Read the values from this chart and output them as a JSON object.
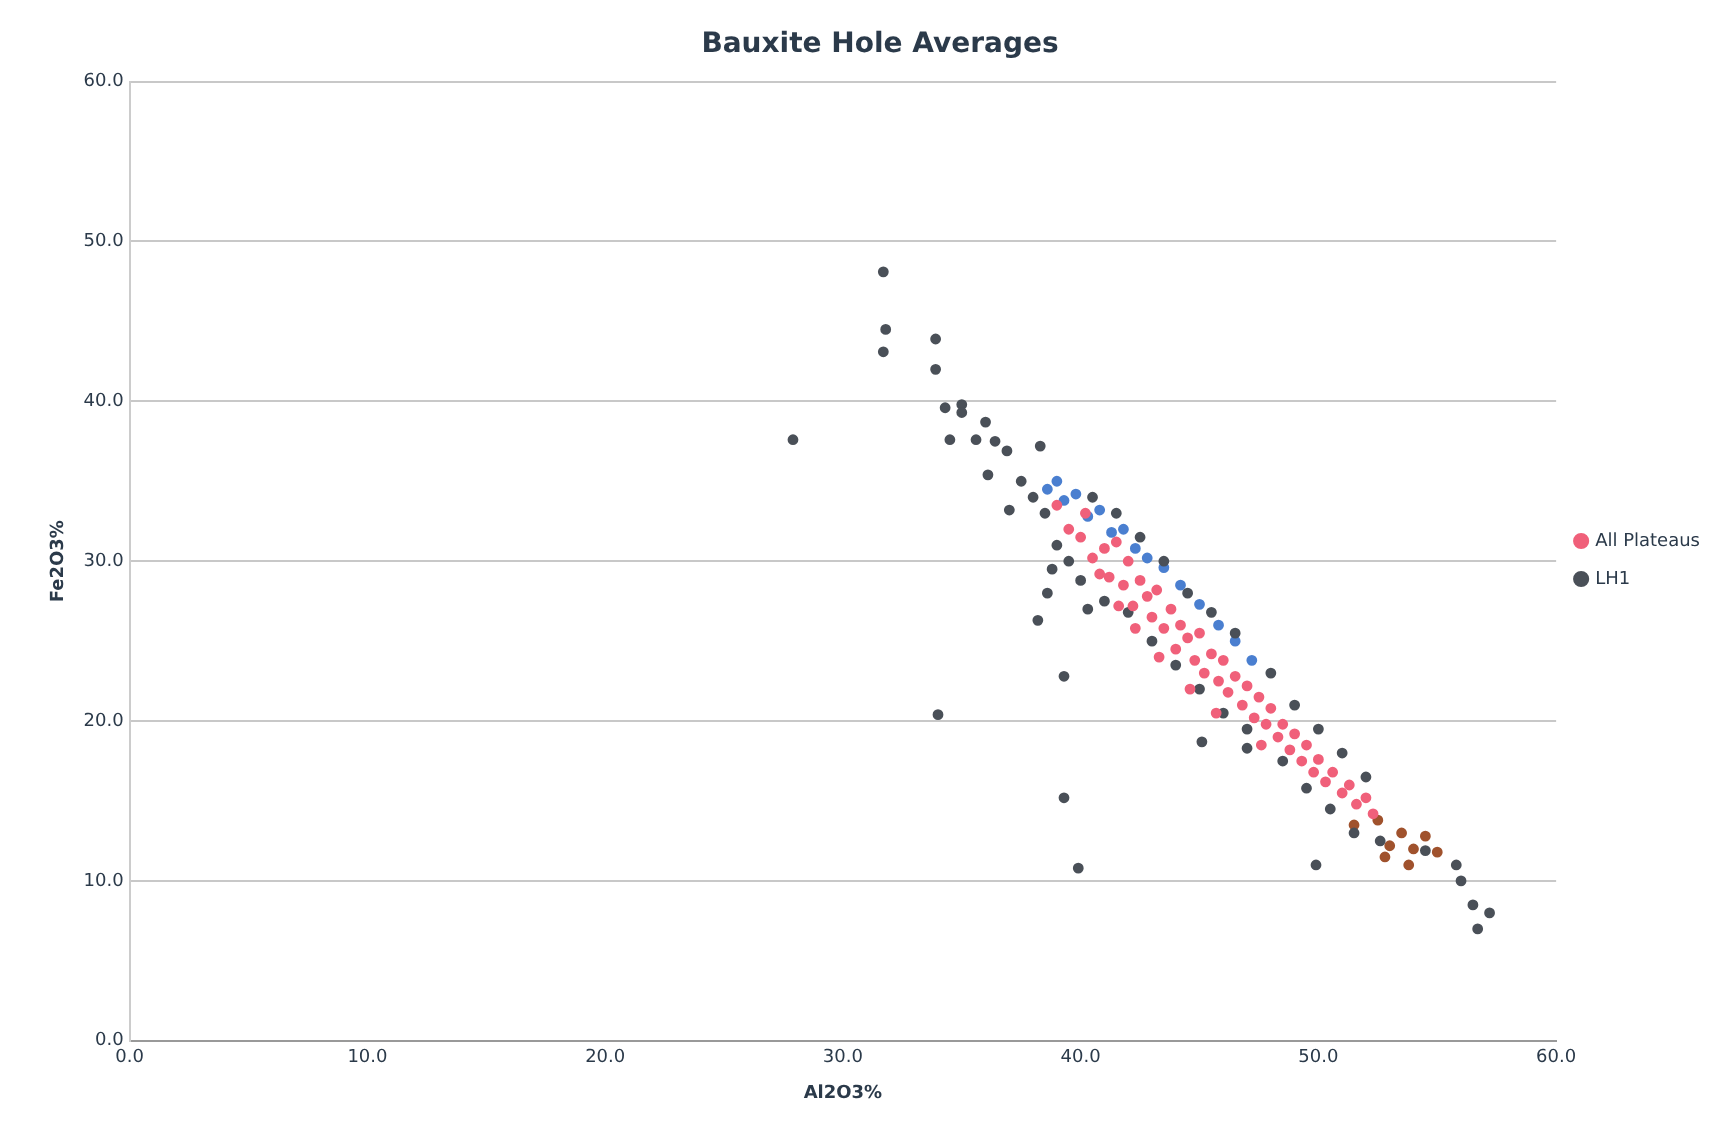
{
  "chart_data": {
    "type": "scatter",
    "title": "Bauxite Hole Averages",
    "xlabel": "Al2O3%",
    "ylabel": "Fe2O3%",
    "xlim": [
      0,
      60
    ],
    "xticks": [
      {
        "value": 0,
        "label": "0.0"
      },
      {
        "value": 10,
        "label": "10.0"
      },
      {
        "value": 20,
        "label": "20.0"
      },
      {
        "value": 30,
        "label": "30.0"
      },
      {
        "value": 40,
        "label": "40.0"
      },
      {
        "value": 50,
        "label": "50.0"
      },
      {
        "value": 60,
        "label": "60.0"
      }
    ],
    "ylim": [
      0,
      60
    ],
    "yticks": [
      {
        "value": 0,
        "label": "0.0"
      },
      {
        "value": 10,
        "label": "10.0"
      },
      {
        "value": 20,
        "label": "20.0"
      },
      {
        "value": 30,
        "label": "30.0"
      },
      {
        "value": 40,
        "label": "40.0"
      },
      {
        "value": 50,
        "label": "50.0"
      },
      {
        "value": 60,
        "label": "60.0"
      }
    ],
    "grid": "y",
    "legend": "right",
    "marker": "circle",
    "series": [
      {
        "name": "All Plateaus",
        "color": "#f0607a",
        "x": [
          39.0,
          39.5,
          40.0,
          40.2,
          40.5,
          41.0,
          41.2,
          41.5,
          41.8,
          42.0,
          42.2,
          42.5,
          42.8,
          43.0,
          43.2,
          43.5,
          43.8,
          44.0,
          44.2,
          44.5,
          44.8,
          45.0,
          45.2,
          45.5,
          45.8,
          46.0,
          46.2,
          46.5,
          46.8,
          47.0,
          47.3,
          47.5,
          47.8,
          48.0,
          48.3,
          48.5,
          48.8,
          49.0,
          49.3,
          49.5,
          49.8,
          50.0,
          50.3,
          50.6,
          51.0,
          51.3,
          51.6,
          52.0,
          52.3,
          43.3,
          42.3,
          45.7,
          41.6,
          47.6,
          44.6,
          40.8
        ],
        "values": [
          33.5,
          32.0,
          31.5,
          33.0,
          30.2,
          30.8,
          29.0,
          31.2,
          28.5,
          30.0,
          27.2,
          28.8,
          27.8,
          26.5,
          28.2,
          25.8,
          27.0,
          24.5,
          26.0,
          25.2,
          23.8,
          25.5,
          23.0,
          24.2,
          22.5,
          23.8,
          21.8,
          22.8,
          21.0,
          22.2,
          20.2,
          21.5,
          19.8,
          20.8,
          19.0,
          19.8,
          18.2,
          19.2,
          17.5,
          18.5,
          16.8,
          17.6,
          16.2,
          16.8,
          15.5,
          16.0,
          14.8,
          15.2,
          14.2,
          24.0,
          25.8,
          20.5,
          27.2,
          18.5,
          22.0,
          29.2
        ]
      },
      {
        "name": "LH1",
        "color": "#4a5058",
        "x": [
          31.7,
          31.8,
          31.7,
          33.9,
          33.9,
          34.3,
          35.0,
          35.0,
          27.9,
          34.5,
          35.6,
          36.0,
          36.4,
          36.9,
          38.3,
          36.1,
          34.0,
          39.3,
          39.3,
          39.9,
          40.3,
          38.2,
          38.6,
          45.1,
          47.0,
          52.6,
          54.5,
          56.0,
          56.5,
          56.7,
          57.2,
          55.8,
          49.9,
          37.5,
          38.0,
          38.5,
          39.0,
          39.5,
          40.0,
          40.5,
          41.0,
          41.5,
          42.0,
          42.5,
          43.0,
          43.5,
          44.0,
          44.5,
          45.0,
          45.5,
          46.0,
          46.5,
          47.0,
          48.0,
          48.5,
          49.0,
          49.5,
          50.0,
          50.5,
          51.0,
          51.5,
          52.0,
          37.0,
          38.8
        ],
        "values": [
          48.1,
          44.5,
          43.1,
          43.9,
          42.0,
          39.6,
          39.8,
          39.3,
          37.6,
          37.6,
          37.6,
          38.7,
          37.5,
          36.9,
          37.2,
          35.4,
          20.4,
          22.8,
          15.2,
          10.8,
          27.0,
          26.3,
          28.0,
          18.7,
          18.3,
          12.5,
          11.9,
          10.0,
          8.5,
          7.0,
          8.0,
          11.0,
          11.0,
          35.0,
          34.0,
          33.0,
          31.0,
          30.0,
          28.8,
          34.0,
          27.5,
          33.0,
          26.8,
          31.5,
          25.0,
          30.0,
          23.5,
          28.0,
          22.0,
          26.8,
          20.5,
          25.5,
          19.5,
          23.0,
          17.5,
          21.0,
          15.8,
          19.5,
          14.5,
          18.0,
          13.0,
          16.5,
          33.2,
          29.5
        ]
      },
      {
        "color": "#4a7fd0",
        "x": [
          38.6,
          39.0,
          39.3,
          39.8,
          40.3,
          40.8,
          41.3,
          41.8,
          42.3,
          42.8,
          43.5,
          44.2,
          45.0,
          45.8,
          46.5,
          47.2
        ],
        "values": [
          34.5,
          35.0,
          33.8,
          34.2,
          32.8,
          33.2,
          31.8,
          32.0,
          30.8,
          30.2,
          29.6,
          28.5,
          27.3,
          26.0,
          25.0,
          23.8
        ]
      },
      {
        "color": "#a0522d",
        "x": [
          51.5,
          52.5,
          53.0,
          53.5,
          54.0,
          54.5,
          55.0,
          52.8,
          53.8
        ],
        "values": [
          13.5,
          13.8,
          12.2,
          13.0,
          12.0,
          12.8,
          11.8,
          11.5,
          11.0
        ]
      }
    ]
  }
}
